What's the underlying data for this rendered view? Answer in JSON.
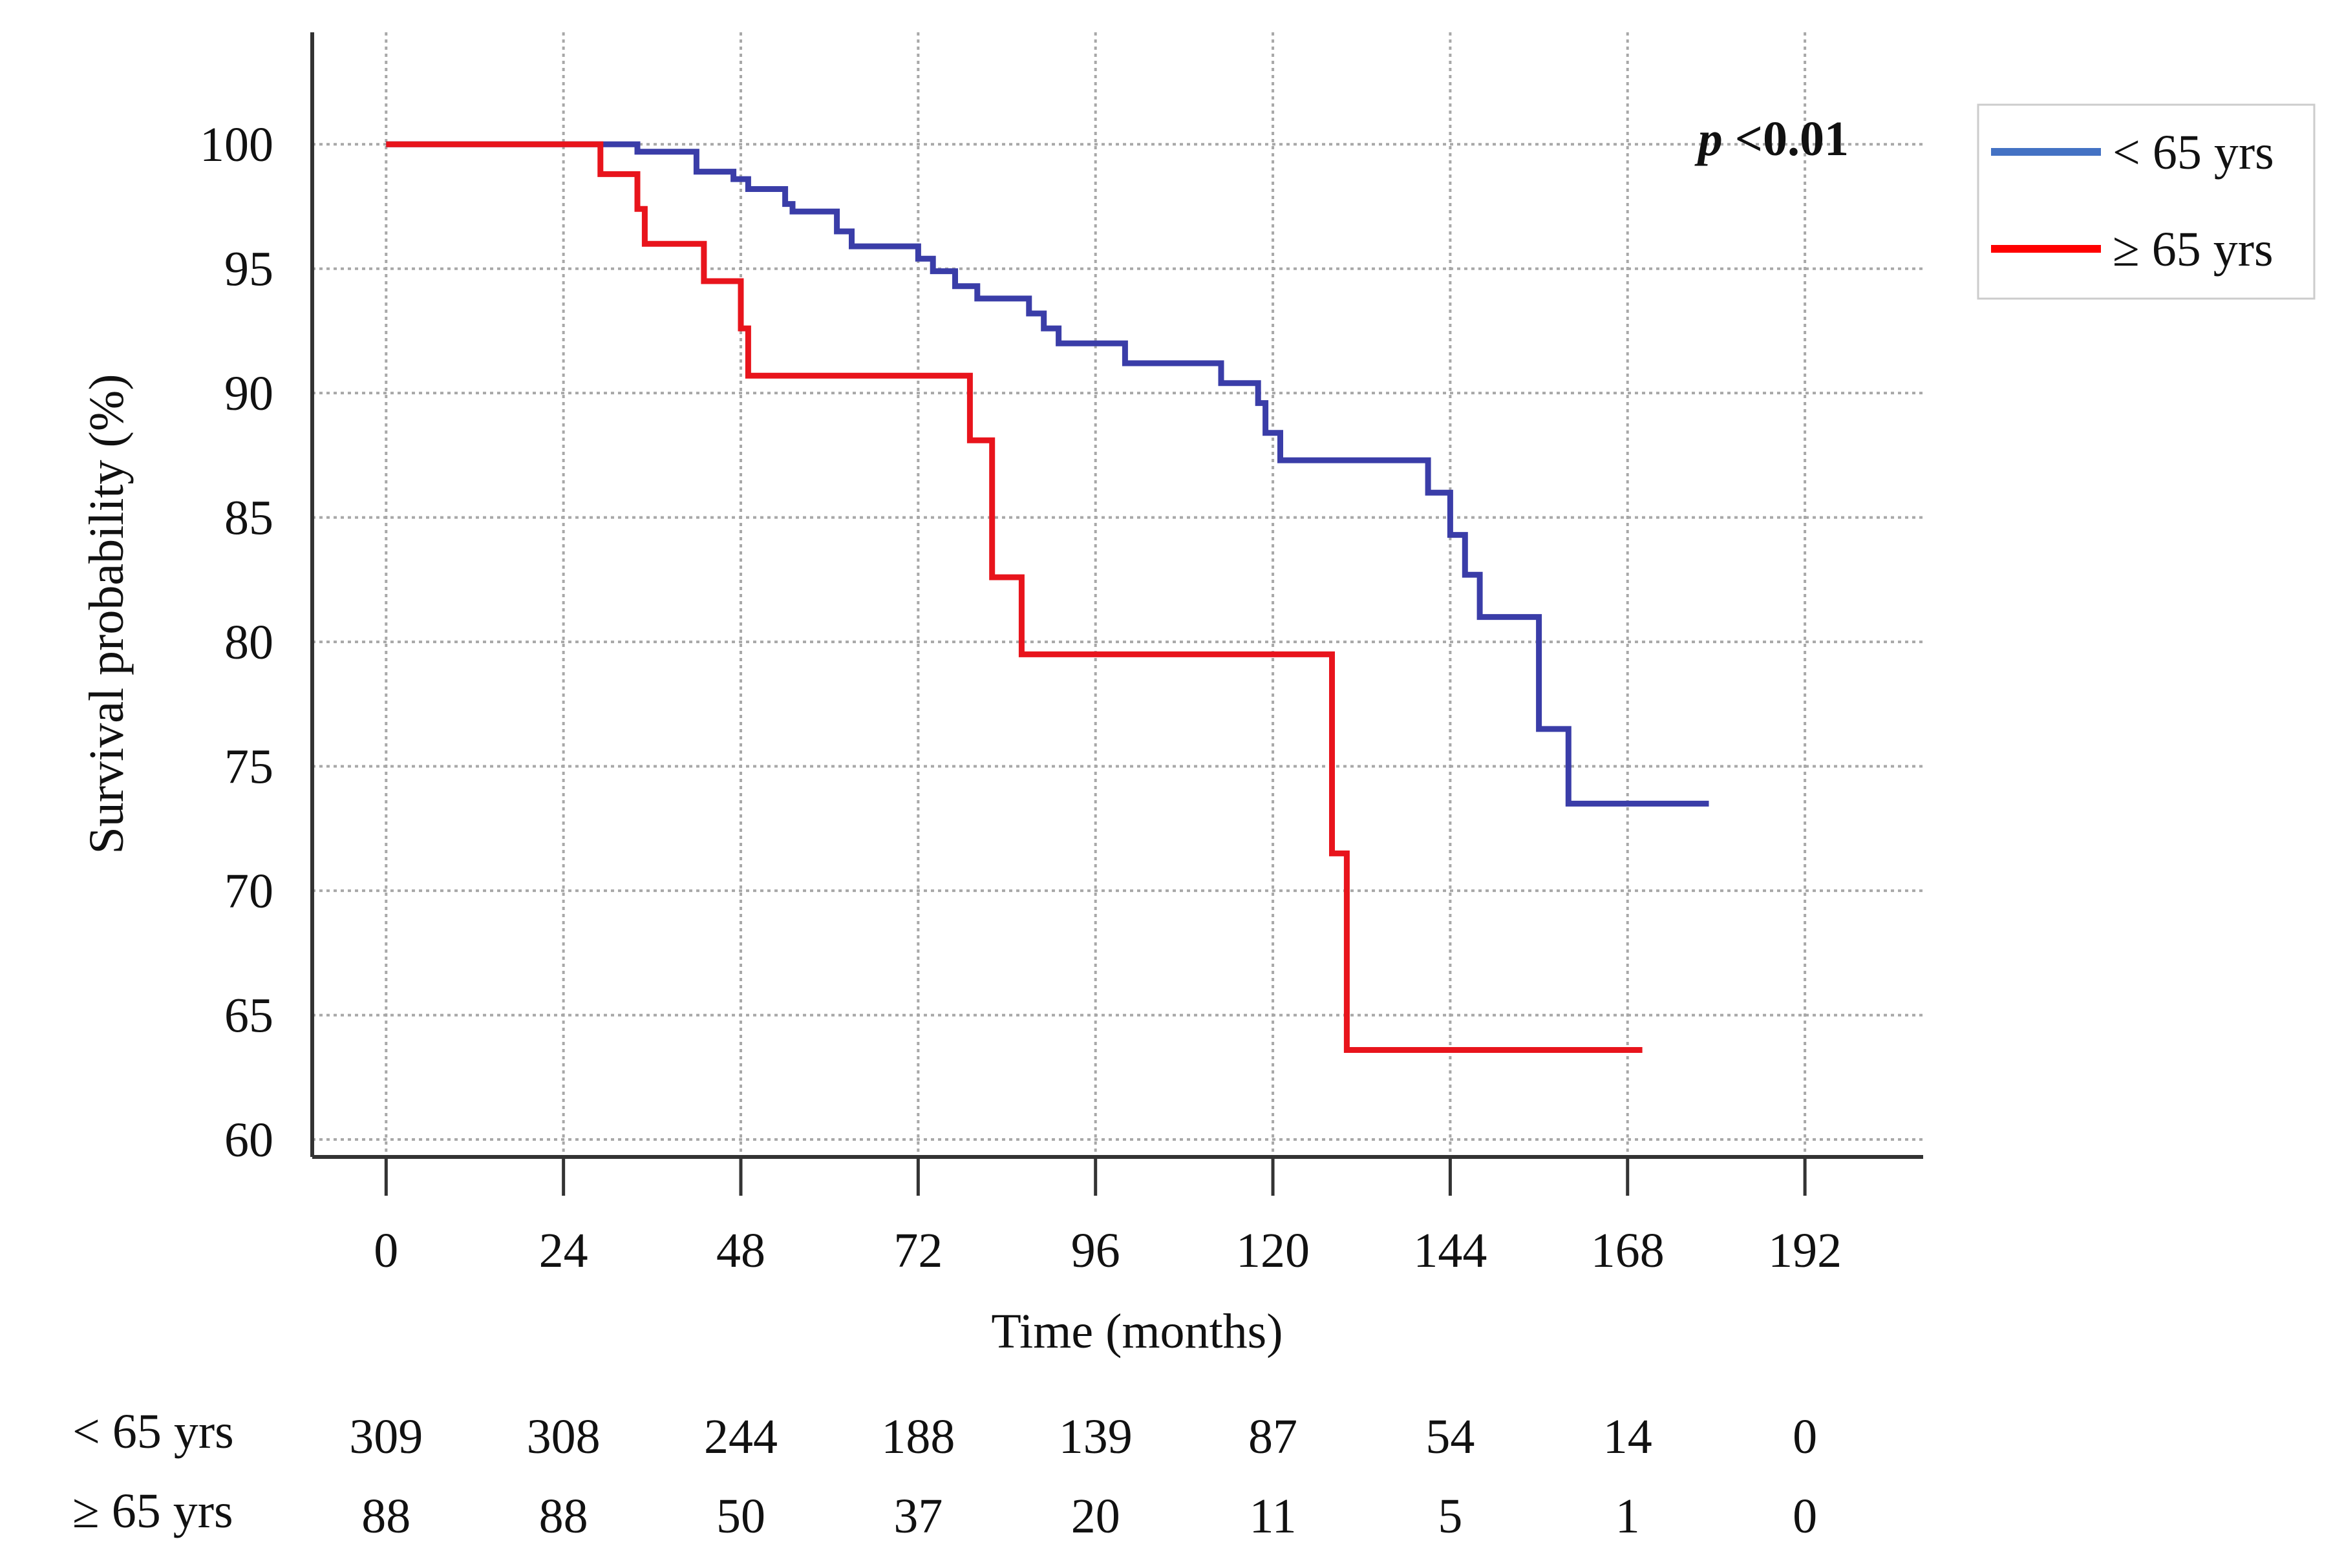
{
  "chart_data": {
    "type": "line",
    "subtype": "kaplan-meier-step",
    "title": "",
    "xlabel": "Time (months)",
    "ylabel": "Survival probability (%)",
    "xlim": [
      -10,
      208
    ],
    "ylim": [
      59.3,
      104.5
    ],
    "xticks": [
      0,
      24,
      48,
      72,
      96,
      120,
      144,
      168,
      192
    ],
    "yticks": [
      60,
      65,
      70,
      75,
      80,
      85,
      90,
      95,
      100
    ],
    "grid": true,
    "annotation": {
      "italic": "p",
      "rest": " <0.01"
    },
    "legend": {
      "position": "outside-right",
      "entries": [
        {
          "label": "< 65 yrs",
          "color": "#4472C4"
        },
        {
          "label": "≥ 65 yrs",
          "color": "#FF0000"
        }
      ]
    },
    "series": [
      {
        "name": "< 65 yrs",
        "color": "#3A3DA8",
        "points": [
          [
            0,
            100
          ],
          [
            34,
            100
          ],
          [
            34,
            99.7
          ],
          [
            42,
            99.7
          ],
          [
            42,
            98.9
          ],
          [
            47,
            98.9
          ],
          [
            47,
            98.6
          ],
          [
            49,
            98.6
          ],
          [
            49,
            98.2
          ],
          [
            54,
            98.2
          ],
          [
            54,
            97.6
          ],
          [
            55,
            97.6
          ],
          [
            55,
            97.3
          ],
          [
            61,
            97.3
          ],
          [
            61,
            96.5
          ],
          [
            63,
            96.5
          ],
          [
            63,
            95.9
          ],
          [
            72,
            95.9
          ],
          [
            72,
            95.4
          ],
          [
            74,
            95.4
          ],
          [
            74,
            94.9
          ],
          [
            77,
            94.9
          ],
          [
            77,
            94.3
          ],
          [
            80,
            94.3
          ],
          [
            80,
            93.8
          ],
          [
            87,
            93.8
          ],
          [
            87,
            93.2
          ],
          [
            89,
            93.2
          ],
          [
            89,
            92.6
          ],
          [
            91,
            92.6
          ],
          [
            91,
            92.0
          ],
          [
            100,
            92.0
          ],
          [
            100,
            91.2
          ],
          [
            113,
            91.2
          ],
          [
            113,
            90.4
          ],
          [
            118,
            90.4
          ],
          [
            118,
            89.6
          ],
          [
            119,
            89.6
          ],
          [
            119,
            88.4
          ],
          [
            121,
            88.4
          ],
          [
            121,
            87.3
          ],
          [
            141,
            87.3
          ],
          [
            141,
            86.0
          ],
          [
            144,
            86.0
          ],
          [
            144,
            84.3
          ],
          [
            146,
            84.3
          ],
          [
            146,
            82.7
          ],
          [
            148,
            82.7
          ],
          [
            148,
            81.0
          ],
          [
            156,
            81.0
          ],
          [
            156,
            76.5
          ],
          [
            160,
            76.5
          ],
          [
            160,
            73.5
          ],
          [
            179,
            73.5
          ]
        ]
      },
      {
        "name": "≥ 65 yrs",
        "color": "#E8141C",
        "points": [
          [
            0,
            100
          ],
          [
            29,
            100
          ],
          [
            29,
            98.8
          ],
          [
            34,
            98.8
          ],
          [
            34,
            97.4
          ],
          [
            35,
            97.4
          ],
          [
            35,
            96.0
          ],
          [
            43,
            96.0
          ],
          [
            43,
            94.5
          ],
          [
            48,
            94.5
          ],
          [
            48,
            92.6
          ],
          [
            49,
            92.6
          ],
          [
            49,
            90.7
          ],
          [
            79,
            90.7
          ],
          [
            79,
            88.1
          ],
          [
            82,
            88.1
          ],
          [
            82,
            82.6
          ],
          [
            86,
            82.6
          ],
          [
            86,
            79.5
          ],
          [
            128,
            79.5
          ],
          [
            128,
            71.5
          ],
          [
            130,
            71.5
          ],
          [
            130,
            63.6
          ],
          [
            170,
            63.6
          ]
        ]
      }
    ],
    "risk_table": {
      "times": [
        0,
        24,
        48,
        72,
        96,
        120,
        144,
        168,
        192
      ],
      "rows": [
        {
          "label": "< 65 yrs",
          "values": [
            "309",
            "308",
            "244",
            "188",
            "139",
            "87",
            "54",
            "14",
            "0"
          ]
        },
        {
          "label": "≥ 65 yrs",
          "values": [
            "88",
            "88",
            "50",
            "37",
            "20",
            "11",
            "5",
            "1",
            "0"
          ]
        }
      ]
    }
  }
}
